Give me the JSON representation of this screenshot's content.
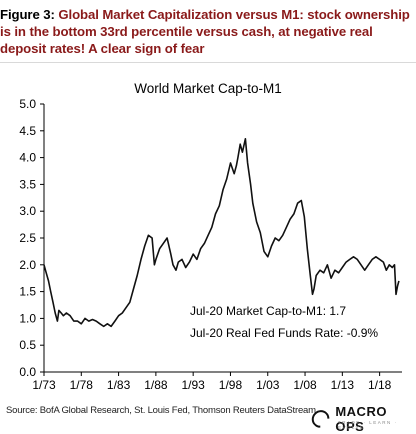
{
  "header": {
    "figure_label": "Figure 3:",
    "headline": "Global Market Capitalization versus M1: stock ownership is in the bottom 33rd percentile versus cash, at negative real deposit rates! A clear sign of fear"
  },
  "footer": {
    "source": "Source: BofA Global Research, St. Louis Fed, Thomson Reuters DataStream.",
    "logo": "MACRO OPS",
    "logo_tagline": "TRADE · LEARN · EVOLVE"
  },
  "colors": {
    "line": "#111111",
    "text": "#000000",
    "heading": "#8a1a1a"
  },
  "chart_data": {
    "type": "line",
    "title": "World Market Cap-to-M1",
    "xlabel": "",
    "ylabel": "",
    "ylim": [
      0.0,
      5.0
    ],
    "yticks": [
      "0.0",
      "0.5",
      "1.0",
      "1.5",
      "2.0",
      "2.5",
      "3.0",
      "3.5",
      "4.0",
      "4.5",
      "5.0"
    ],
    "xlim": [
      1973.0,
      2021.0
    ],
    "xticks": [
      "1/73",
      "1/78",
      "1/83",
      "1/88",
      "1/93",
      "1/98",
      "1/03",
      "1/08",
      "1/13",
      "1/18"
    ],
    "grid": false,
    "annotations": [
      "Jul-20 Market Cap-to-M1: 1.7",
      "Jul-20 Real Fed Funds Rate: -0.9%"
    ],
    "series": [
      {
        "x": [
          1973.0,
          1973.3,
          1973.6,
          1973.9,
          1974.2,
          1974.5,
          1974.8,
          1975.0,
          1975.3,
          1975.6,
          1976.0,
          1976.5,
          1977.0,
          1977.5,
          1978.0,
          1978.5,
          1979.0,
          1979.5,
          1980.0,
          1980.5,
          1981.0,
          1981.5,
          1982.0,
          1982.5,
          1983.0,
          1983.5,
          1984.0,
          1984.5,
          1985.0,
          1985.5,
          1986.0,
          1986.5,
          1987.0,
          1987.5,
          1987.8,
          1988.0,
          1988.5,
          1989.0,
          1989.5,
          1990.0,
          1990.3,
          1990.7,
          1991.0,
          1991.5,
          1992.0,
          1992.5,
          1993.0,
          1993.5,
          1994.0,
          1994.5,
          1995.0,
          1995.5,
          1996.0,
          1996.5,
          1997.0,
          1997.5,
          1998.0,
          1998.5,
          1998.8,
          1999.0,
          1999.3,
          1999.6,
          2000.0,
          2000.3,
          2000.7,
          2001.0,
          2001.5,
          2002.0,
          2002.5,
          2003.0,
          2003.5,
          2004.0,
          2004.5,
          2005.0,
          2005.5,
          2006.0,
          2006.5,
          2007.0,
          2007.5,
          2007.9,
          2008.3,
          2008.7,
          2009.0,
          2009.2,
          2009.5,
          2010.0,
          2010.5,
          2011.0,
          2011.5,
          2012.0,
          2012.5,
          2013.0,
          2013.5,
          2014.0,
          2014.5,
          2015.0,
          2015.5,
          2016.0,
          2016.5,
          2017.0,
          2017.5,
          2018.0,
          2018.5,
          2018.9,
          2019.3,
          2019.7,
          2020.0,
          2020.2,
          2020.4,
          2020.58
        ],
        "y": [
          2.0,
          1.85,
          1.7,
          1.5,
          1.3,
          1.1,
          0.95,
          1.15,
          1.1,
          1.05,
          1.1,
          1.05,
          0.95,
          0.95,
          0.9,
          1.0,
          0.95,
          0.98,
          0.95,
          0.9,
          0.85,
          0.9,
          0.85,
          0.95,
          1.05,
          1.1,
          1.2,
          1.3,
          1.55,
          1.8,
          2.1,
          2.35,
          2.55,
          2.5,
          2.0,
          2.1,
          2.3,
          2.4,
          2.5,
          2.2,
          2.0,
          1.9,
          2.05,
          2.1,
          1.95,
          2.05,
          2.2,
          2.1,
          2.3,
          2.4,
          2.55,
          2.7,
          2.95,
          3.1,
          3.4,
          3.6,
          3.9,
          3.7,
          3.85,
          4.0,
          4.25,
          4.1,
          4.35,
          3.9,
          3.5,
          3.15,
          2.8,
          2.6,
          2.25,
          2.15,
          2.35,
          2.5,
          2.45,
          2.55,
          2.7,
          2.85,
          2.95,
          3.15,
          3.2,
          2.9,
          2.3,
          1.8,
          1.45,
          1.55,
          1.8,
          1.9,
          1.85,
          2.0,
          1.75,
          1.9,
          1.85,
          1.95,
          2.05,
          2.1,
          2.15,
          2.1,
          2.0,
          1.9,
          2.0,
          2.1,
          2.15,
          2.1,
          2.05,
          1.9,
          2.0,
          1.95,
          2.0,
          1.45,
          1.6,
          1.7
        ]
      }
    ]
  }
}
